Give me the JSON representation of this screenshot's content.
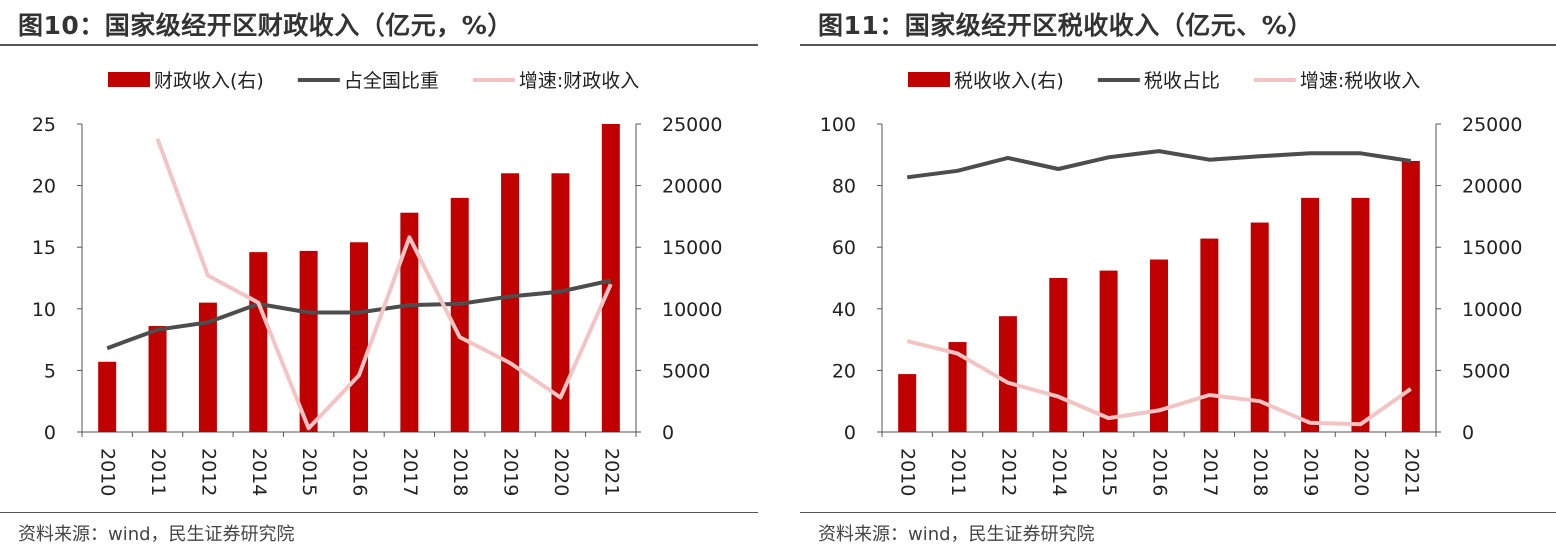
{
  "colors": {
    "bar": "#c00000",
    "line_dark": "#4d4d4d",
    "line_pink": "#f2c4c4"
  },
  "left": {
    "title": "图10：国家级经开区财政收入（亿元，%）",
    "source": "资料来源：wind，民生证券研究院"
  },
  "right": {
    "title": "图11：国家级经开区税收收入（亿元、%）",
    "source": "资料来源：wind，民生证券研究院"
  },
  "chart_data": [
    {
      "type": "bar",
      "categories": [
        "2010",
        "2011",
        "2012",
        "2014",
        "2015",
        "2016",
        "2017",
        "2018",
        "2019",
        "2020",
        "2021"
      ],
      "left_axis": {
        "ylim": [
          0,
          25
        ],
        "ticks": [
          "0",
          "5",
          "10",
          "15",
          "20",
          "25"
        ]
      },
      "right_axis": {
        "ylim": [
          0,
          25000
        ],
        "ticks": [
          "0",
          "5000",
          "10000",
          "15000",
          "20000",
          "25000"
        ]
      },
      "legend_position": "top",
      "series": [
        {
          "name": "财政收入(右)",
          "kind": "bar",
          "axis": "right",
          "color": "#c00000",
          "values": [
            5700,
            8600,
            10500,
            14600,
            14700,
            15400,
            17800,
            19000,
            21000,
            21000,
            25000
          ]
        },
        {
          "name": "占全国比重",
          "kind": "line",
          "axis": "left",
          "color": "#4d4d4d",
          "values": [
            6.8,
            8.3,
            8.9,
            10.4,
            9.7,
            9.7,
            10.3,
            10.4,
            11.0,
            11.4,
            12.3
          ]
        },
        {
          "name": "增速:财政收入",
          "kind": "line",
          "axis": "left",
          "color": "#f2c4c4",
          "values": [
            null,
            23.8,
            12.7,
            10.5,
            0.3,
            4.6,
            15.8,
            7.7,
            5.6,
            2.8,
            12.0
          ]
        }
      ]
    },
    {
      "type": "bar",
      "categories": [
        "2010",
        "2011",
        "2012",
        "2014",
        "2015",
        "2016",
        "2017",
        "2018",
        "2019",
        "2020",
        "2021"
      ],
      "left_axis": {
        "ylim": [
          0,
          100
        ],
        "ticks": [
          "0",
          "20",
          "40",
          "60",
          "80",
          "100"
        ]
      },
      "right_axis": {
        "ylim": [
          0,
          25000
        ],
        "ticks": [
          "0",
          "5000",
          "10000",
          "15000",
          "20000",
          "25000"
        ]
      },
      "legend_position": "top",
      "series": [
        {
          "name": "税收收入(右)",
          "kind": "bar",
          "axis": "right",
          "color": "#c00000",
          "values": [
            4700,
            7300,
            9400,
            12500,
            13100,
            14000,
            15700,
            17000,
            19000,
            19000,
            22000
          ]
        },
        {
          "name": "税收占比",
          "kind": "line",
          "axis": "left",
          "color": "#4d4d4d",
          "values": [
            82.7,
            84.8,
            89.0,
            85.4,
            89.2,
            91.2,
            88.4,
            89.5,
            90.5,
            90.5,
            88.0
          ]
        },
        {
          "name": "增速:税收收入",
          "kind": "line",
          "axis": "left",
          "color": "#f2c4c4",
          "values": [
            29.5,
            25.5,
            16.0,
            11.5,
            4.5,
            7.0,
            12.0,
            10.0,
            3.0,
            2.5,
            14.0
          ]
        }
      ]
    }
  ]
}
